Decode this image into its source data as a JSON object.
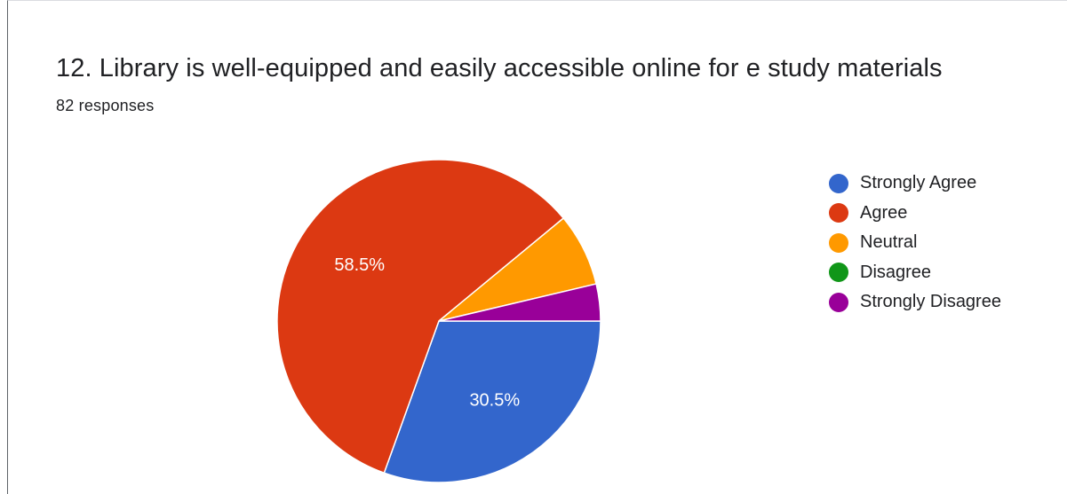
{
  "card": {
    "title": "12. Library is well-equipped and easily accessible online for e study materials",
    "subtitle": "82 responses"
  },
  "chart_data": {
    "type": "pie",
    "title": "12. Library is well-equipped and easily accessible online for e study materials",
    "subtitle": "82 responses",
    "total_responses": 82,
    "legend_position": "right",
    "categories": [
      "Strongly Agree",
      "Agree",
      "Neutral",
      "Disagree",
      "Strongly Disagree"
    ],
    "values": [
      30.5,
      58.5,
      7.3,
      0,
      3.7
    ],
    "labels": [
      "30.5%",
      "58.5%",
      "",
      "",
      ""
    ],
    "colors": [
      "#3366cc",
      "#dc3912",
      "#ff9900",
      "#109618",
      "#990099"
    ]
  }
}
